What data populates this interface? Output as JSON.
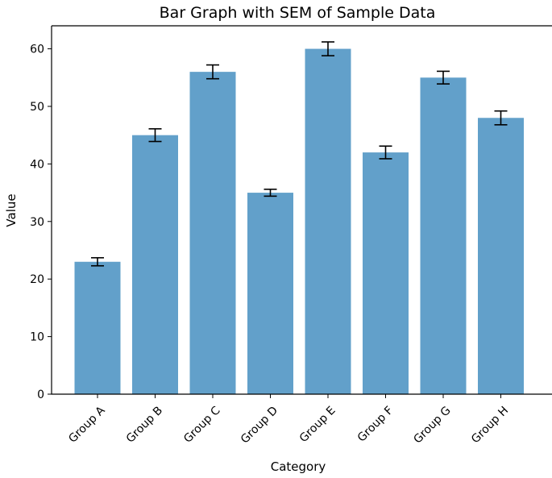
{
  "chart_data": {
    "type": "bar",
    "title": "Bar Graph with SEM of Sample Data",
    "xlabel": "Category",
    "ylabel": "Value",
    "categories": [
      "Group A",
      "Group B",
      "Group C",
      "Group D",
      "Group E",
      "Group F",
      "Group G",
      "Group H"
    ],
    "values": [
      23,
      45,
      56,
      35,
      60,
      42,
      55,
      48
    ],
    "errors": [
      0.7,
      1.1,
      1.2,
      0.6,
      1.2,
      1.1,
      1.1,
      1.2
    ],
    "ylim": [
      0,
      64
    ],
    "yticks": [
      0,
      10,
      20,
      30,
      40,
      50,
      60
    ],
    "grid": false,
    "bar_color": "#1f77b4",
    "bar_opacity": 0.7,
    "error_color": "#000000"
  }
}
